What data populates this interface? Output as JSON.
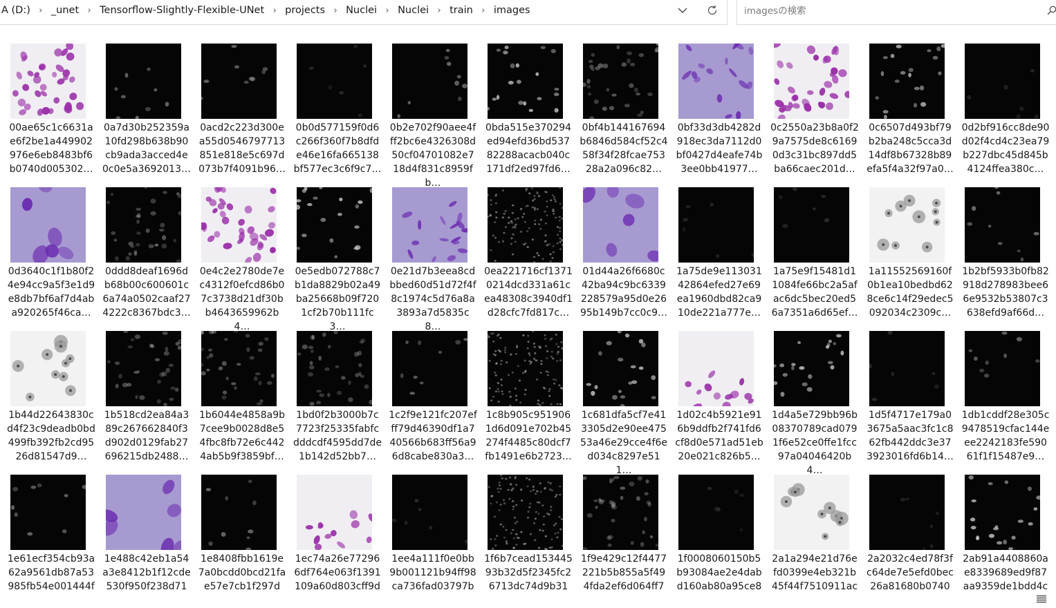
{
  "address_bar": {
    "crumbs": [
      "A (D:)",
      "_unet",
      "Tensorflow-Slightly-Flexible-UNet",
      "projects",
      "Nuclei",
      "Nuclei",
      "train",
      "images"
    ],
    "separator": "›"
  },
  "search": {
    "placeholder": "imagesの検索"
  },
  "files": [
    {
      "name": "00ae65c1c6631ae6f2be1a449902976e6eb8483bf6b0740d005302…",
      "thumb": "he-dense"
    },
    {
      "name": "0a7d30b252359a10fd298b638b90cb9ada3acced4e0c0e5a3692013…",
      "thumb": "dark-sparse"
    },
    {
      "name": "0acd2c223d300ea55d0546797713851e818e5c697d073b7f4091b96…",
      "thumb": "dark-sparse"
    },
    {
      "name": "0b0d577159f0d6c266f360f7b8dfde46e16fa665138bf577ec3c6f9c7…",
      "thumb": "dark-faint"
    },
    {
      "name": "0b2e702f90aee4fff2bc6e4326308d50cf04701082e718d4f831c8959fb…",
      "thumb": "dark-sparse"
    },
    {
      "name": "0bda515e370294ed94efd36bd53782288acacb040c171df2ed97fd6…",
      "thumb": "dark-medium"
    },
    {
      "name": "0bf4b144167694b6846d584cf52c458f34f28fcae75328a2a096c82…",
      "thumb": "dark-many"
    },
    {
      "name": "0bf33d3db4282d918ec3da7112d0bf0427d4eafe74b3ee0bb41977…",
      "thumb": "lavender"
    },
    {
      "name": "0c2550a23b8a0f29a7575de8c61690d3c31bc897dd5ba66caec201d…",
      "thumb": "he-dense"
    },
    {
      "name": "0c6507d493bf79b2ba248c5cca3d14df8b67328b89efa5f4a32f97a0…",
      "thumb": "dark-medium"
    },
    {
      "name": "0d2bf916cc8de90d02f4cd4c23ea79b227dbc45d845b4124ffea380c…",
      "thumb": "dark-faint"
    },
    {
      "name": "0d3640c1f1b80f24e94cc9a5f3e1d9e8db7bf6af7d4aba920265f46ca…",
      "thumb": "lavender-large"
    },
    {
      "name": "0ddd8deaf1696db68b00c600601c6a74a0502caaf274222c8367bdc3…",
      "thumb": "dark-many"
    },
    {
      "name": "0e4c2e2780de7ec4312f0efcd86b07c3738d21df30bb4643659962b4…",
      "thumb": "he-dense"
    },
    {
      "name": "0e5edb072788c7b1da8829b02a49ba25668b09f7201cf2b70b111fc3…",
      "thumb": "dark-medium"
    },
    {
      "name": "0e21d7b3eea8cdbbed60d51d72f4f8c1974c5d76a8a3893a7d5835c8…",
      "thumb": "lavender"
    },
    {
      "name": "0ea221716cf13710214dcd331a61cea48308c3940df1d28cfc7fd817c…",
      "thumb": "dark-dense"
    },
    {
      "name": "01d44a26f6680c42ba94c9bc6339228579a95d0e2695b149b7cc0c9…",
      "thumb": "lavender-large"
    },
    {
      "name": "1a75de9e11303142864efed27e69ea1960dbd82ca910de221a777e…",
      "thumb": "dark-faint"
    },
    {
      "name": "1a75e9f15481d11084fe66bc2a5afac6dc5bec20ed56a7351a6d65ef…",
      "thumb": "dark-faint"
    },
    {
      "name": "1a11552569160f0b1ea10bedbd628ce6c14f29edec5092034c2309c…",
      "thumb": "grey-cells"
    },
    {
      "name": "1b2bf5933b0fb82918d278983bee66e9532b53807c3638efd9af66d…",
      "thumb": "dark-sparse"
    },
    {
      "name": "1b44d22643830cd4f23c9deadb0bd499fb392fb2cd9526d81547d9…",
      "thumb": "grey-cells"
    },
    {
      "name": "1b518cd2ea84a389c267662840f3d902d0129fab27696215db2488…",
      "thumb": "dark-many"
    },
    {
      "name": "1b6044e4858a9b7cee9b0028d8e54fbc8fb72e6c4424ab5b9f3859bf…",
      "thumb": "dark-many"
    },
    {
      "name": "1bd0f2b3000b7c7723f25335fabfcdddcdf4595dd7de1b142d52bb7…",
      "thumb": "dark-many"
    },
    {
      "name": "1c2f9e121fc207efff79d46390df1a740566b683ff56a96d8cabe830a3…",
      "thumb": "dark-sparse"
    },
    {
      "name": "1c8b905c9519061d6d091e702b45274f4485c80dcf7fb1491e6b2723…",
      "thumb": "dark-dense"
    },
    {
      "name": "1c681dfa5cf7e413305d2e90ee47553a46e29cce4f6ed034c8297e511…",
      "thumb": "dark-medium"
    },
    {
      "name": "1d02c4b5921e916b9ddfb2f741fd6cf8d0e571ad51eb20e021c826b5…",
      "thumb": "he-sparse"
    },
    {
      "name": "1d4a5e729bb96b08370789cad0791f6e52ce0ffe1fcc97a04046420b4…",
      "thumb": "dark-medium"
    },
    {
      "name": "1d5f4717e179a03675a5aac3fc1c862fb442ddc3e373923016fd6b14…",
      "thumb": "dark-faint"
    },
    {
      "name": "1db1cddf28e305c9478519cfac144eee2242183fe59061f1f15487e9…",
      "thumb": "dark-sparse"
    },
    {
      "name": "1e61ecf354cb93a62a9561db87a53985fb54e001444f",
      "thumb": "dark-sparse"
    },
    {
      "name": "1e488c42eb1a54a3e8412b1f12cde530f950f238d71",
      "thumb": "lavender-large"
    },
    {
      "name": "1e8408fbb1619e7a0bcdd0bcd21fae57e7cb1f297d",
      "thumb": "dark-sparse"
    },
    {
      "name": "1ec74a26e772966df764e063f1391109a60d803cff9d",
      "thumb": "he-sparse"
    },
    {
      "name": "1ee4a111f0e0bb9b001121b94ff98ca736fad03797b",
      "thumb": "dark-faint"
    },
    {
      "name": "1f6b7cead15344593b32d5f2345fc26713dc74d9b31",
      "thumb": "dark-dense"
    },
    {
      "name": "1f9e429c12f4477221b5b855a5f494fda2ef6d064ff7",
      "thumb": "dark-many"
    },
    {
      "name": "1f0008060150b5b93084ae2e4dabd160ab80a95ce8",
      "thumb": "dark-faint"
    },
    {
      "name": "2a1a294e21d76efd0399e4eb321b45f44f7510911ac",
      "thumb": "grey-cells"
    },
    {
      "name": "2a2032c4ed78f3fc64de7e5efd0bec26a81680b0740",
      "thumb": "dark-faint"
    },
    {
      "name": "2ab91a4408860ae8339689ed9f87aa9359de1bdd4c",
      "thumb": "dark-medium"
    }
  ],
  "colors": {
    "he_bg": "#f0eef2",
    "he_nucleus": "#9a2fa8",
    "lavender_bg": "#a79ad0",
    "lavender_nucleus": "#6a2ab0",
    "grey_bg": "#f2f2f2",
    "grey_cell": "#9a9a9a",
    "dark_bg": "#050505",
    "dark_nucleus": "#cfcfcf"
  },
  "icons": {
    "address_dropdown": "chevron-down-icon",
    "refresh": "refresh-icon",
    "search": "search-icon",
    "view_toggle": "details-view-icon"
  }
}
